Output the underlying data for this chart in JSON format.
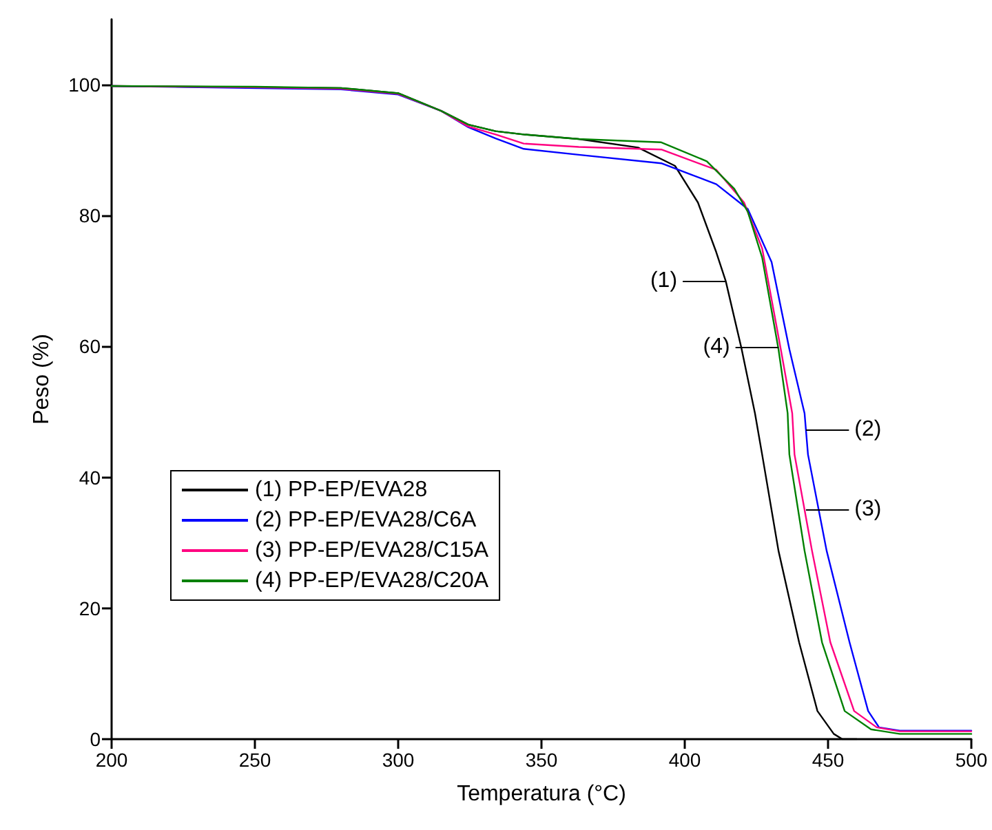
{
  "chart_data": {
    "type": "line",
    "xlabel": "Temperatura (°C)",
    "ylabel": "Peso (%)",
    "xlim": [
      200,
      500
    ],
    "xticks": [
      200,
      250,
      300,
      350,
      400,
      450,
      500
    ],
    "ylim": [
      0,
      110
    ],
    "yticks": [
      0,
      20,
      40,
      60,
      80,
      100
    ],
    "grid": false,
    "legend": "bottom left",
    "marker": "none",
    "line_style": "solid",
    "series": [
      {
        "name": "(1) PP-EP/EVA28",
        "color": "#000000",
        "x": [
          200,
          280,
          300,
          315,
          324.5,
          334,
          343.8,
          363,
          383.7,
          396.6,
          404.6,
          411,
          414.3,
          419.8,
          424.5,
          427,
          432.7,
          439.9,
          446.3,
          452,
          455,
          460
        ],
        "values": [
          99.8,
          99.5,
          98.7,
          96,
          93.9,
          92.9,
          92.4,
          91.7,
          90.4,
          87.6,
          82,
          74.4,
          70,
          59.7,
          49.8,
          43.5,
          28.8,
          14.8,
          4.3,
          0.8,
          0,
          0
        ]
      },
      {
        "name": "(2) PP-EP/EVA28/C6A",
        "color": "#0000ff",
        "x": [
          200,
          280,
          300,
          315,
          324.5,
          334,
          343.8,
          363,
          391.8,
          411,
          422,
          430.3,
          436.5,
          441.8,
          443,
          449.5,
          457.5,
          464,
          467.8,
          475,
          500
        ],
        "values": [
          99.8,
          99.3,
          98.5,
          96,
          93.5,
          91.8,
          90.2,
          89.3,
          88,
          84.8,
          81,
          72.9,
          59.6,
          49.8,
          43.5,
          28.8,
          14.8,
          4.3,
          1.8,
          1.3,
          1.3
        ]
      },
      {
        "name": "(3) PP-EP/EVA28/C15A",
        "color": "#ff0080",
        "x": [
          200,
          250,
          280,
          300,
          315,
          324.5,
          334,
          343.8,
          363,
          391.8,
          411,
          420.7,
          427,
          433.5,
          437.5,
          438.3,
          444.4,
          450.8,
          459.1,
          467,
          475,
          500
        ],
        "values": [
          99.8,
          99.6,
          99.4,
          98.6,
          96,
          93.6,
          92.4,
          91,
          90.5,
          90.1,
          87,
          82,
          75,
          59.6,
          49.8,
          43.5,
          28.8,
          14.8,
          4.3,
          1.8,
          1.2,
          1.2
        ]
      },
      {
        "name": "(4) PP-EP/EVA28/C20A",
        "color": "#008000",
        "x": [
          200,
          250,
          280,
          300,
          315,
          324.5,
          334,
          343.8,
          363,
          391.8,
          407.7,
          417.3,
          422,
          427,
          432.7,
          435.9,
          436.5,
          441.8,
          447.9,
          455.8,
          465,
          475,
          500
        ],
        "values": [
          99.8,
          99.7,
          99.5,
          98.7,
          96,
          93.9,
          92.9,
          92.4,
          91.7,
          91.2,
          88.3,
          84.1,
          80.6,
          73.6,
          59.6,
          49.8,
          43.5,
          28.8,
          14.8,
          4.3,
          1.5,
          0.8,
          0.8
        ]
      }
    ],
    "annotations": [
      {
        "text": "(1)",
        "x": 414.3,
        "y": 70
      },
      {
        "text": "(2)",
        "x": 442.3,
        "y": 47.3
      },
      {
        "text": "(3)",
        "x": 442.3,
        "y": 35.1
      },
      {
        "text": "(4)",
        "x": 432.7,
        "y": 59.9
      }
    ]
  }
}
